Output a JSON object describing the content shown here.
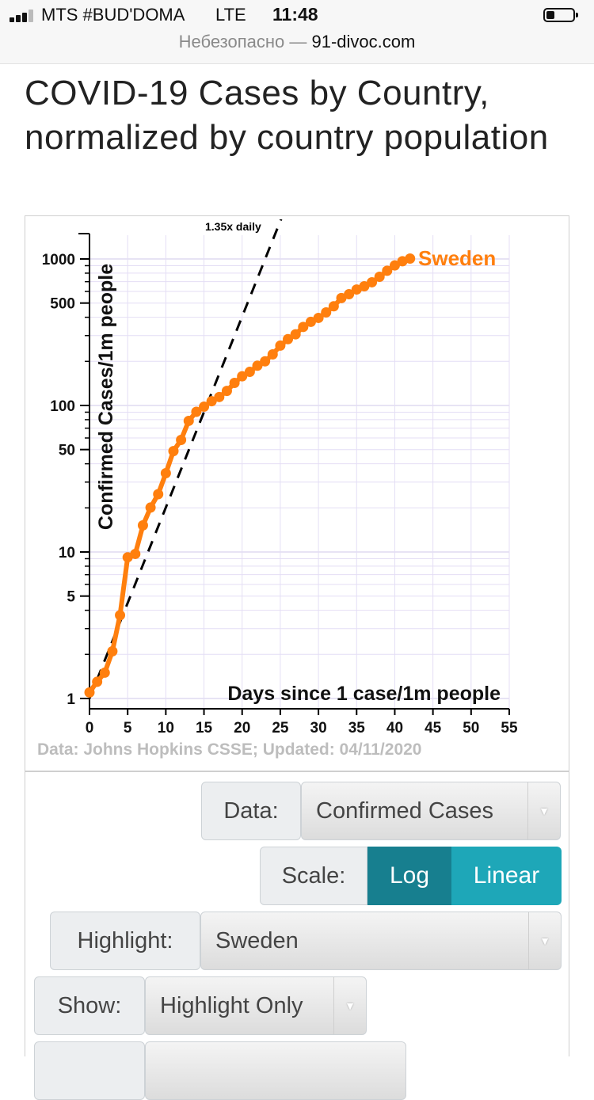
{
  "status_bar": {
    "carrier": "MTS #BUD'DOMA",
    "network": "LTE",
    "time": "11:48"
  },
  "browser": {
    "security_text": "Небезопасно",
    "separator": "—",
    "domain": "91-divoc.com"
  },
  "page": {
    "title": "COVID-19 Cases by Country, normalized by country population"
  },
  "chart_data": {
    "type": "line",
    "title": "",
    "xlabel": "Days since 1 case/1m people",
    "ylabel": "Confirmed Cases/1m people",
    "y_scale": "log",
    "xlim": [
      0,
      55
    ],
    "ylim": [
      1,
      1600
    ],
    "x_ticks": [
      "0",
      "5",
      "10",
      "15",
      "20",
      "25",
      "30",
      "35",
      "40",
      "45",
      "50",
      "55"
    ],
    "y_ticks": [
      {
        "value": 1,
        "label": "1"
      },
      {
        "value": 5,
        "label": "5"
      },
      {
        "value": 10,
        "label": "10"
      },
      {
        "value": 50,
        "label": "50"
      },
      {
        "value": 100,
        "label": "100"
      },
      {
        "value": 500,
        "label": "500"
      },
      {
        "value": 1000,
        "label": "1000"
      }
    ],
    "grid": true,
    "series": [
      {
        "name": "Sweden",
        "color": "#ff7f0e",
        "x": [
          0,
          1,
          2,
          3,
          4,
          5,
          6,
          7,
          8,
          9,
          10,
          11,
          12,
          13,
          14,
          15,
          16,
          17,
          18,
          19,
          20,
          21,
          22,
          23,
          24,
          25,
          26,
          27,
          28,
          29,
          30,
          31,
          32,
          33,
          34,
          35,
          36,
          37,
          38,
          39,
          40,
          41,
          42
        ],
        "y": [
          1.1,
          1.3,
          1.5,
          2.1,
          3.7,
          9.2,
          9.7,
          15.2,
          20.1,
          24.8,
          34.5,
          48.8,
          58.2,
          78.5,
          90.5,
          98.1,
          106.9,
          114.2,
          125.7,
          142.6,
          158.2,
          169.6,
          186.8,
          200.2,
          223.1,
          256.2,
          283.5,
          306.0,
          343.6,
          372.1,
          395.9,
          431.8,
          475.1,
          541.0,
          574.3,
          618.8,
          651.1,
          693.2,
          755.9,
          831.2,
          903.3,
          965.0,
          1006.4
        ]
      }
    ],
    "reference_line": {
      "label": "1.35x daily",
      "growth": 1.35,
      "color": "#000000",
      "style": "dashed"
    },
    "source": "Data: Johns Hopkins CSSE; Updated: 04/11/2020"
  },
  "controls": {
    "data": {
      "label": "Data:",
      "value": "Confirmed Cases"
    },
    "scale": {
      "label": "Scale:",
      "options": [
        "Log",
        "Linear"
      ],
      "selected": "Log"
    },
    "highlight": {
      "label": "Highlight:",
      "value": "Sweden"
    },
    "show": {
      "label": "Show:",
      "value": "Highlight Only"
    }
  }
}
